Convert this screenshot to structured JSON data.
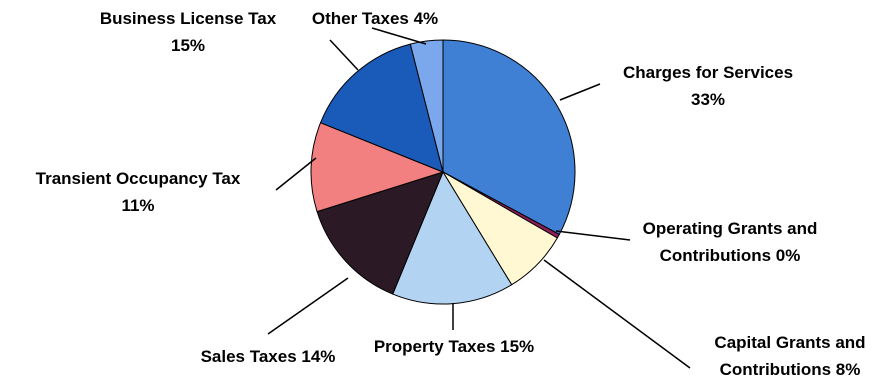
{
  "chart_data": {
    "type": "pie",
    "title": "",
    "start": "top",
    "direction": "clockwise",
    "legend": "none",
    "slices": [
      {
        "name": "Charges for Services",
        "label": [
          "Charges for Services",
          "33%"
        ],
        "value": 33,
        "color": "#3f7fd4"
      },
      {
        "name": "Operating Grants and Contributions",
        "label": [
          "Operating Grants and",
          "Contributions 0%"
        ],
        "value": 0.5,
        "color": "#8c1d58"
      },
      {
        "name": "Capital Grants and Contributions",
        "label": [
          "Capital Grants and",
          "Contributions 8%"
        ],
        "value": 8,
        "color": "#fff8d2"
      },
      {
        "name": "Property Taxes",
        "label": [
          "Property Taxes 15%"
        ],
        "value": 15,
        "color": "#b3d3f2"
      },
      {
        "name": "Sales Taxes",
        "label": [
          "Sales Taxes 14%"
        ],
        "value": 14,
        "color": "#2b1a26"
      },
      {
        "name": "Transient Occupancy Tax",
        "label": [
          "Transient Occupancy Tax",
          "11%"
        ],
        "value": 11,
        "color": "#f28080"
      },
      {
        "name": "Business License Tax",
        "label": [
          "Business License Tax",
          "15%"
        ],
        "value": 15,
        "color": "#1a5ab8"
      },
      {
        "name": "Other Taxes",
        "label": [
          "Other Taxes 4%"
        ],
        "value": 4,
        "color": "#7ba8ec"
      }
    ]
  }
}
